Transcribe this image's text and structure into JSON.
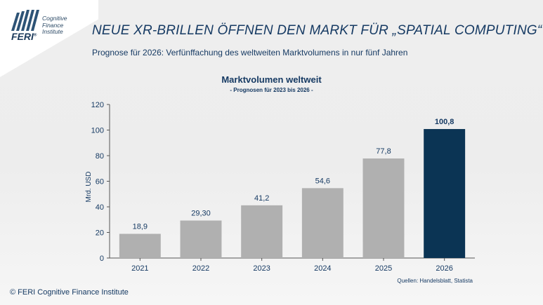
{
  "header": {
    "logo": {
      "wordmark": "FERI",
      "registered": "®",
      "lines": [
        "Cognitive",
        "Finance",
        "Institute"
      ]
    },
    "title": "NEUE XR-BRILLEN ÖFFNEN DEN MARKT FÜR „SPATIAL COMPUTING“",
    "subtitle": "Prognose für 2026: Verfünffachung  des weltweiten  Marktvolumens  in nur fünf Jahren"
  },
  "chart_data": {
    "type": "bar",
    "title": "Marktvolumen weltweit",
    "subtitle": "- Prognosen für 2023 bis 2026 -",
    "ylabel": "Mrd. USD",
    "xlabel": "",
    "ylim": [
      0,
      120
    ],
    "yticks": [
      0,
      20,
      40,
      60,
      80,
      100,
      120
    ],
    "categories": [
      "2021",
      "2022",
      "2023",
      "2024",
      "2025",
      "2026"
    ],
    "values": [
      18.9,
      29.3,
      41.2,
      54.6,
      77.8,
      100.8
    ],
    "data_labels": [
      "18,9",
      "29,30",
      "41,2",
      "54,6",
      "77,8",
      "100,8"
    ],
    "highlight_index": 5,
    "colors": {
      "bar": "#b0b0b0",
      "highlight": "#0b3454",
      "text": "#163a63",
      "axis": "#555555"
    },
    "grid": false,
    "legend": "none"
  },
  "footer": {
    "source": "Quellen: Handelsblatt, Statista",
    "copyright": "© FERI Cognitive Finance Institute"
  }
}
